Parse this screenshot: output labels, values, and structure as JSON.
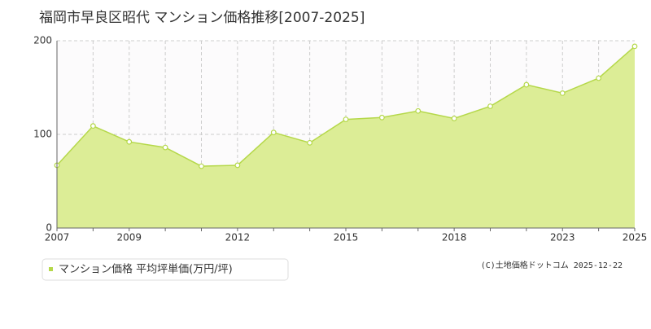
{
  "chart_data": {
    "type": "area",
    "title": "福岡市早良区昭代 マンション価格推移[2007-2025]",
    "categories": [
      "2007",
      null,
      "2009",
      null,
      null,
      "2012",
      null,
      null,
      "2015",
      null,
      null,
      "2018",
      null,
      null,
      "2023",
      null,
      "2025"
    ],
    "series": [
      {
        "name": "マンション価格 平均坪単価(万円/坪)",
        "color": "#b5d84a",
        "fill": "#dced96",
        "values": [
          67,
          109,
          92,
          86,
          66,
          67,
          102,
          91,
          116,
          118,
          125,
          117,
          130,
          153,
          144,
          160,
          194
        ]
      }
    ],
    "ylim": [
      0,
      200
    ],
    "yticks": [
      0,
      100,
      200
    ],
    "grid": true,
    "footer": "(C)土地価格ドットコム 2025-12-22"
  }
}
